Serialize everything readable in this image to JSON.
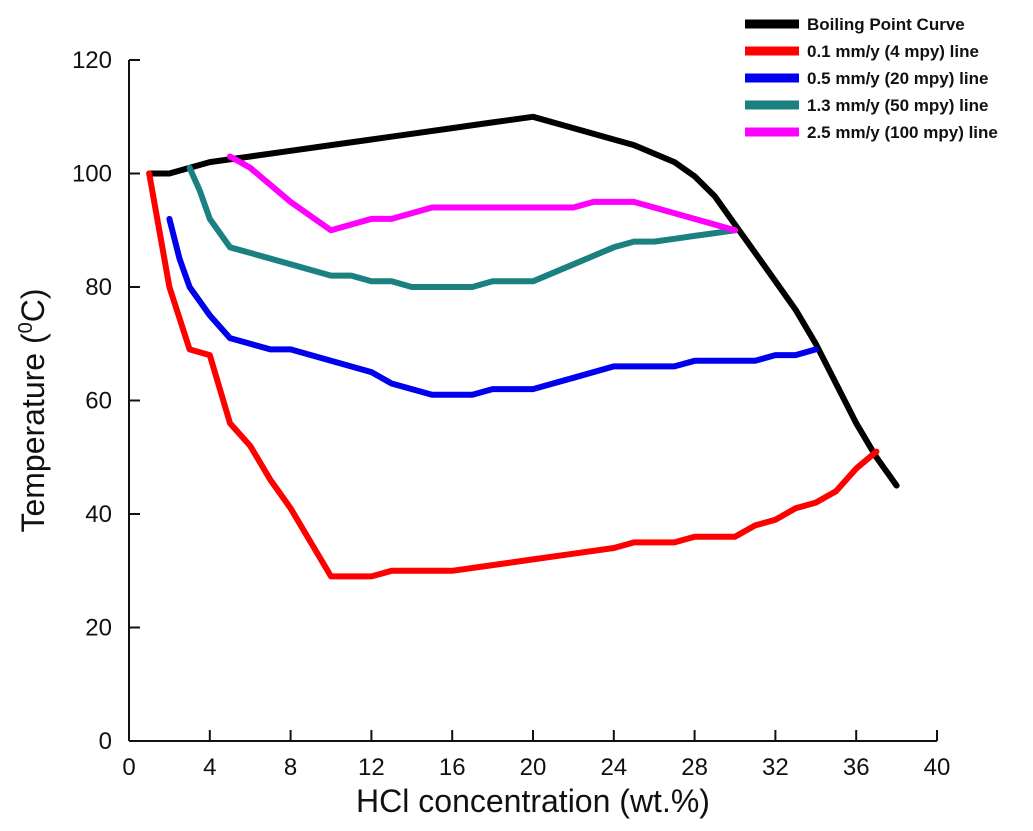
{
  "chart_data": {
    "type": "line",
    "title": "",
    "xlabel": "HCl concentration (wt.%)",
    "ylabel": "Temperature (",
    "ylabel_sup": "0",
    "ylabel_tail": "C)",
    "xlim": [
      0,
      40
    ],
    "ylim": [
      0,
      120
    ],
    "xticks": [
      0,
      4,
      8,
      12,
      16,
      20,
      24,
      28,
      32,
      36,
      40
    ],
    "yticks": [
      0,
      20,
      40,
      60,
      80,
      100,
      120
    ],
    "grid": false,
    "legend_position": "top-right",
    "series": [
      {
        "name": "Boiling Point Curve",
        "color": "#000000",
        "x": [
          1,
          2,
          4,
          6,
          8,
          10,
          12,
          14,
          16,
          18,
          20,
          22,
          24,
          25,
          27,
          28,
          29,
          30,
          31,
          32,
          33,
          34,
          35,
          36,
          37,
          38
        ],
        "y": [
          100,
          100,
          102,
          103,
          104,
          105,
          106,
          107,
          108,
          109,
          110,
          108,
          106,
          105,
          102,
          99.5,
          96,
          91,
          86,
          81,
          76,
          70,
          63,
          56,
          50,
          45
        ]
      },
      {
        "name": "0.1 mm/y (4 mpy) line",
        "color": "#ff0000",
        "x": [
          1,
          1.5,
          2,
          3,
          4,
          5,
          6,
          7,
          8,
          9,
          10,
          12,
          13,
          16,
          18,
          20,
          22,
          24,
          25,
          26,
          27,
          28,
          30,
          31,
          32,
          33,
          34,
          35,
          36,
          37
        ],
        "y": [
          100,
          90,
          80,
          69,
          68,
          56,
          52,
          46,
          41,
          35,
          29,
          29,
          30,
          30,
          31,
          32,
          33,
          34,
          35,
          35,
          35,
          36,
          36,
          38,
          39,
          41,
          42,
          44,
          48,
          51
        ]
      },
      {
        "name": "0.5 mm/y (20 mpy) line",
        "color": "#0000ee",
        "x": [
          2,
          2.5,
          3,
          4,
          5,
          6,
          7,
          8,
          10,
          12,
          13,
          14,
          15,
          17,
          18,
          20,
          22,
          24,
          26,
          27,
          28,
          30,
          31,
          32,
          33,
          34
        ],
        "y": [
          92,
          85,
          80,
          75,
          71,
          70,
          69,
          69,
          67,
          65,
          63,
          62,
          61,
          61,
          62,
          62,
          64,
          66,
          66,
          66,
          67,
          67,
          67,
          68,
          68,
          69
        ]
      },
      {
        "name": "1.3 mm/y (50 mpy) line",
        "color": "#1a8080",
        "x": [
          3,
          3.5,
          4,
          5,
          6,
          8,
          10,
          11,
          12,
          13,
          14,
          15,
          16,
          17,
          18,
          20,
          22,
          24,
          25,
          26,
          27,
          28,
          29,
          30
        ],
        "y": [
          101,
          97,
          92,
          87,
          86,
          84,
          82,
          82,
          81,
          81,
          80,
          80,
          80,
          80,
          81,
          81,
          84,
          87,
          88,
          88,
          88.5,
          89,
          89.5,
          90
        ]
      },
      {
        "name": "2.5 mm/y (100 mpy) line",
        "color": "#ff00ff",
        "x": [
          5,
          6,
          8,
          10,
          12,
          13,
          15,
          17,
          18,
          20,
          22,
          23,
          24,
          25,
          26,
          28,
          30
        ],
        "y": [
          103,
          101,
          95,
          90,
          92,
          92,
          94,
          94,
          94,
          94,
          94,
          95,
          95,
          95,
          94,
          92,
          90
        ]
      }
    ]
  }
}
